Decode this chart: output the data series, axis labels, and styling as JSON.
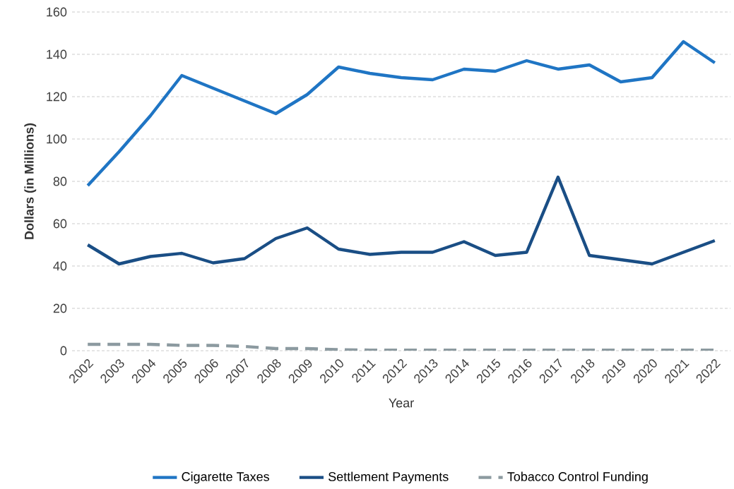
{
  "chart_data": {
    "type": "line",
    "xlabel": "Year",
    "ylabel": "Dollars (in Millions)",
    "categories": [
      "2002",
      "2003",
      "2004",
      "2005",
      "2006",
      "2007",
      "2008",
      "2009",
      "2010",
      "2011",
      "2012",
      "2013",
      "2014",
      "2015",
      "2016",
      "2017",
      "2018",
      "2019",
      "2020",
      "2021",
      "2022"
    ],
    "series": [
      {
        "name": "Cigarette Taxes",
        "color": "#1f75c4",
        "line_style": "solid",
        "values": [
          78,
          94,
          111,
          130,
          124,
          118,
          112,
          121,
          134,
          131,
          129,
          128,
          133,
          132,
          137,
          133,
          135,
          127,
          129,
          146,
          136
        ]
      },
      {
        "name": "Settlement Payments",
        "color": "#1a4e85",
        "line_style": "solid",
        "values": [
          50,
          41,
          44.5,
          46,
          41.5,
          43.5,
          53,
          58,
          48,
          45.5,
          46.5,
          46.5,
          51.5,
          45,
          46.5,
          82,
          45,
          43,
          41,
          46.5,
          52
        ]
      },
      {
        "name": "Tobacco Control Funding",
        "color": "#8c9aa0",
        "line_style": "dashed",
        "values": [
          3,
          3,
          3,
          2.5,
          2.5,
          2,
          1,
          1,
          0.5,
          0.3,
          0.3,
          0.3,
          0.3,
          0.3,
          0.3,
          0.3,
          0.3,
          0.3,
          0.3,
          0.3,
          0.3
        ]
      }
    ],
    "ylim": [
      0,
      160
    ],
    "yticks": [
      0,
      20,
      40,
      60,
      80,
      100,
      120,
      140,
      160
    ],
    "grid": "y",
    "legend": "bottom",
    "marker": "none"
  }
}
